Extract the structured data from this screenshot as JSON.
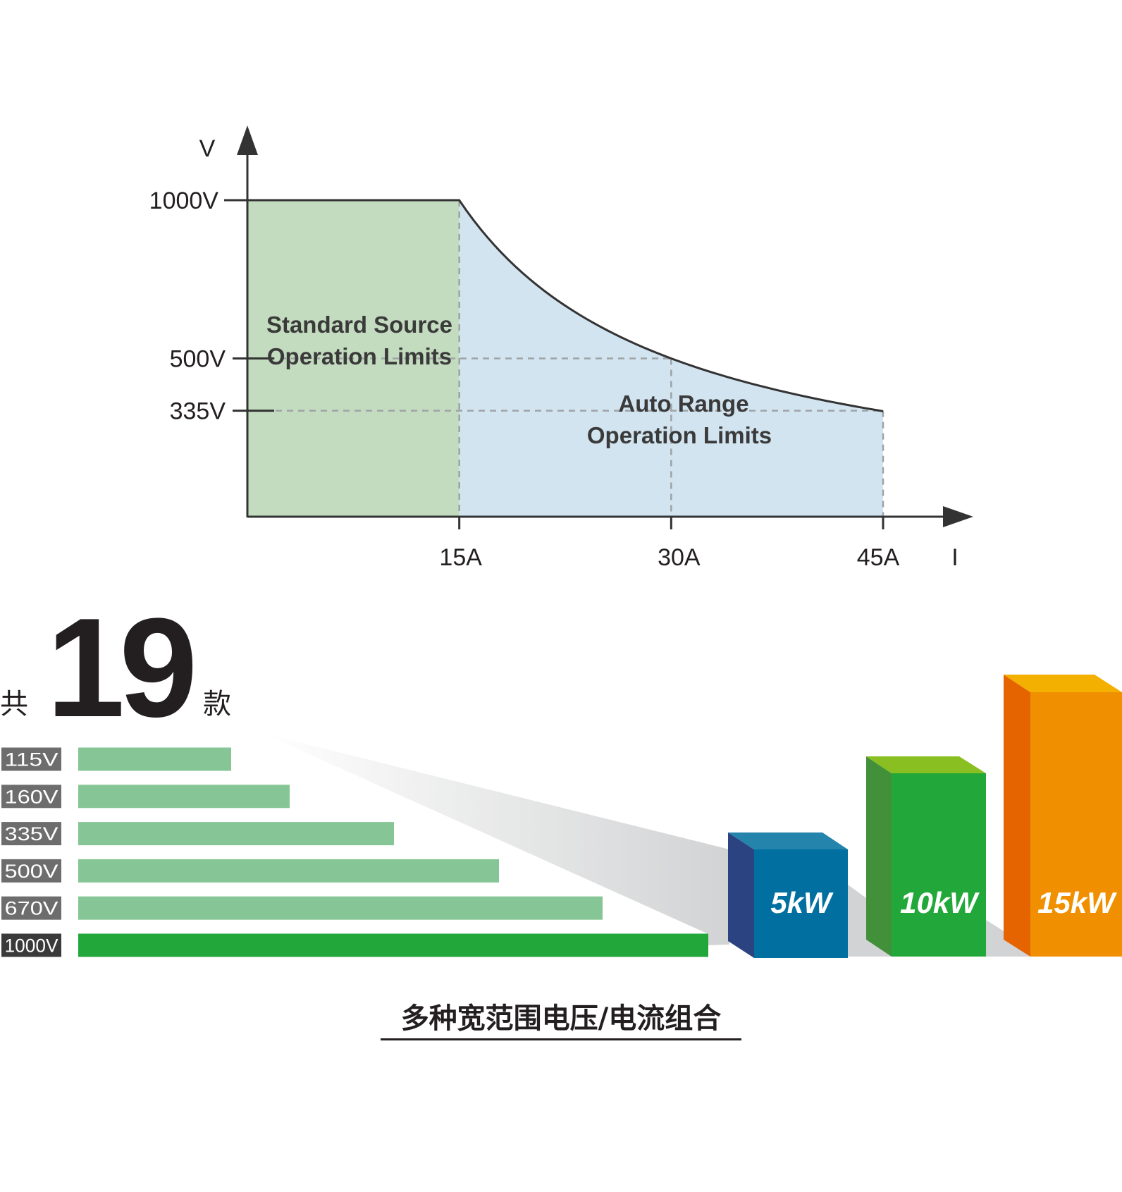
{
  "chart_data": [
    {
      "type": "area",
      "xlabel": "I",
      "ylabel": "V",
      "x_ticks": [
        "15A",
        "30A",
        "45A"
      ],
      "y_ticks": [
        "1000V",
        "500V",
        "335V"
      ],
      "x_tick_values": [
        15,
        30,
        45
      ],
      "y_tick_values": [
        1000,
        500,
        335
      ],
      "xlim": [
        0,
        54
      ],
      "ylim": [
        0,
        1250
      ],
      "grid": "dashed reference lines at ticks",
      "regions": [
        {
          "name": "Standard Source Operation Limits",
          "lines": [
            "Standard Source",
            "Operation Limits"
          ],
          "x_range": [
            0,
            15
          ],
          "v_max": 1000,
          "color": "#c3dcbf"
        },
        {
          "name": "Auto Range Operation Limits",
          "lines": [
            "Auto Range",
            "Operation Limits"
          ],
          "x_range": [
            15,
            45
          ],
          "boundary": "constant power 15kW (V = 15000 / I)",
          "color": "#d2e4f0"
        }
      ],
      "boundary_points": [
        [
          0,
          1000
        ],
        [
          15,
          1000
        ],
        [
          30,
          500
        ],
        [
          45,
          335
        ]
      ]
    },
    {
      "type": "bar",
      "header": {
        "prefix": "共",
        "count": "19",
        "suffix": "款"
      },
      "categories": [
        "115V",
        "160V",
        "335V",
        "500V",
        "670V",
        "1000V"
      ],
      "values": [
        115,
        160,
        335,
        500,
        670,
        1000
      ],
      "bar_colors": [
        "#86c595",
        "#86c595",
        "#86c595",
        "#86c595",
        "#86c595",
        "#22a83a"
      ],
      "label_colors": [
        "#6d6d6d",
        "#6d6d6d",
        "#6d6d6d",
        "#6d6d6d",
        "#6d6d6d",
        "#3a3a3a"
      ],
      "power_levels": [
        {
          "label": "5kW",
          "value": 5,
          "front": "#0170a0",
          "side": "#2c4381",
          "top": "#2484ab"
        },
        {
          "label": "10kW",
          "value": 10,
          "front": "#22a83a",
          "side": "#43903a",
          "top": "#8abf22"
        },
        {
          "label": "15kW",
          "value": 15,
          "front": "#f09000",
          "side": "#e56400",
          "top": "#f3b000"
        }
      ],
      "caption": "多种宽范围电压/电流组合"
    }
  ]
}
